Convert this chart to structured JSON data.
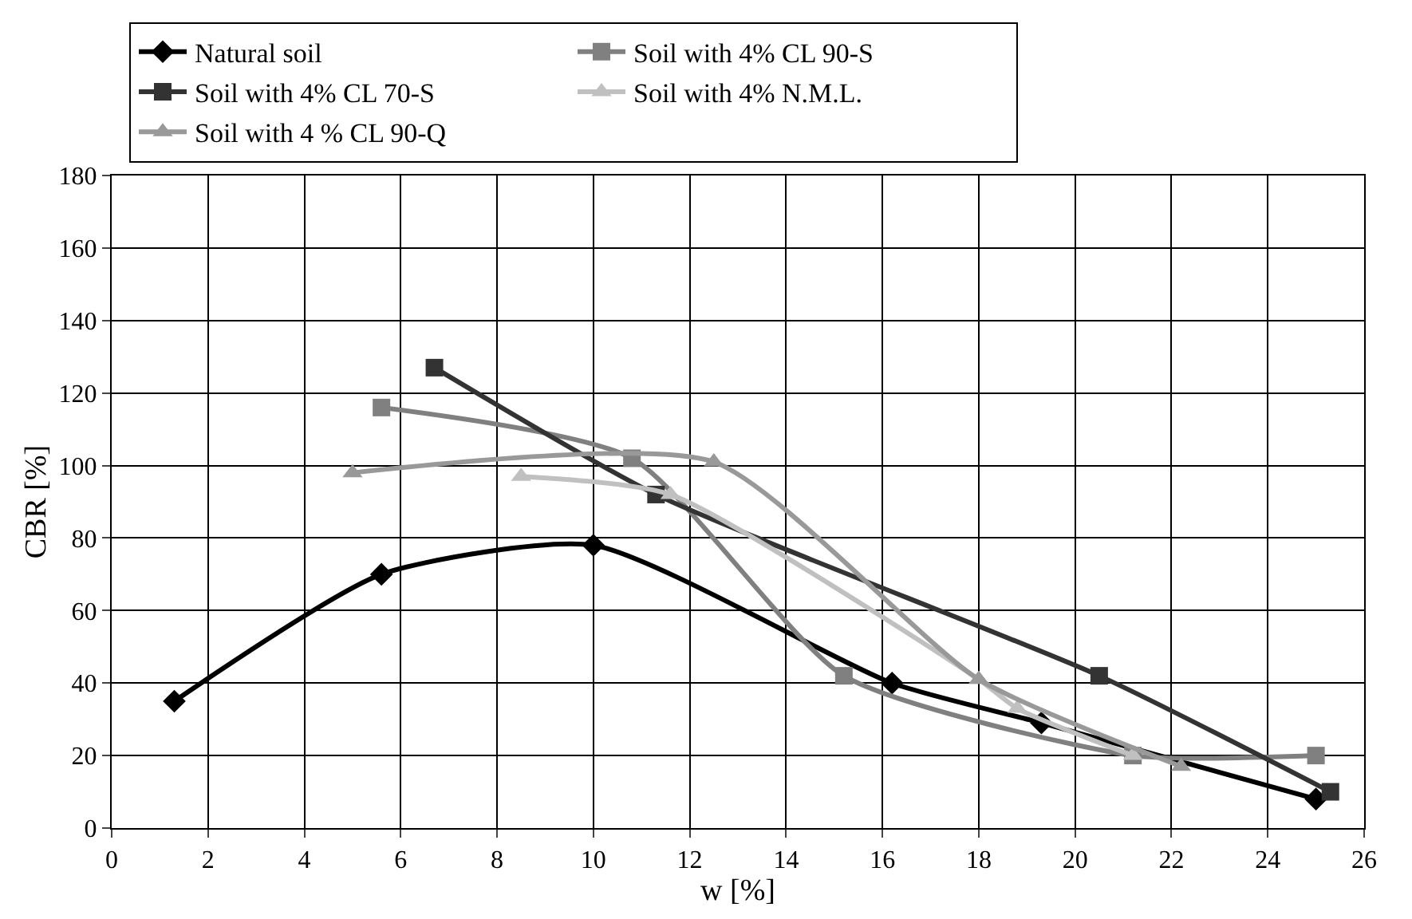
{
  "chart_data": {
    "type": "line",
    "xlabel": "w [%]",
    "ylabel": "CBR [%]",
    "xlim": [
      0,
      26
    ],
    "xticks": [
      0,
      2,
      4,
      6,
      8,
      10,
      12,
      14,
      16,
      18,
      20,
      22,
      24,
      26
    ],
    "ylim": [
      0,
      180
    ],
    "yticks": [
      0,
      20,
      40,
      60,
      80,
      100,
      120,
      140,
      160,
      180
    ],
    "grid": true,
    "legend": "top",
    "line_style": "solid",
    "series": [
      {
        "name": "Natural soil",
        "color": "#000000",
        "marker": "diamond",
        "x": [
          1.3,
          5.6,
          10,
          16.2,
          19.3,
          25
        ],
        "values": [
          35,
          70,
          78,
          40,
          29,
          8
        ]
      },
      {
        "name": "Soil with 4% CL 90-S",
        "color": "#808080",
        "marker": "square",
        "x": [
          5.6,
          10.8,
          15.2,
          21.2,
          25
        ],
        "values": [
          116,
          102,
          42,
          20,
          20
        ]
      },
      {
        "name": "Soil with 4% CL 70-S",
        "color": "#333333",
        "marker": "square",
        "x": [
          6.7,
          11.3,
          20.5,
          25.3
        ],
        "values": [
          127,
          92,
          42,
          10
        ]
      },
      {
        "name": "Soil with 4% N.M.L.",
        "color": "#c0c0c0",
        "marker": "triangle",
        "x": [
          8.5,
          11.6,
          18,
          18.8,
          21.2
        ],
        "values": [
          97,
          92,
          41,
          33,
          20
        ]
      },
      {
        "name": "Soil with 4 % CL 90-Q",
        "color": "#999999",
        "marker": "triangle",
        "x": [
          5,
          12.5,
          18,
          22.2
        ],
        "values": [
          98,
          101,
          41,
          17
        ]
      }
    ]
  }
}
